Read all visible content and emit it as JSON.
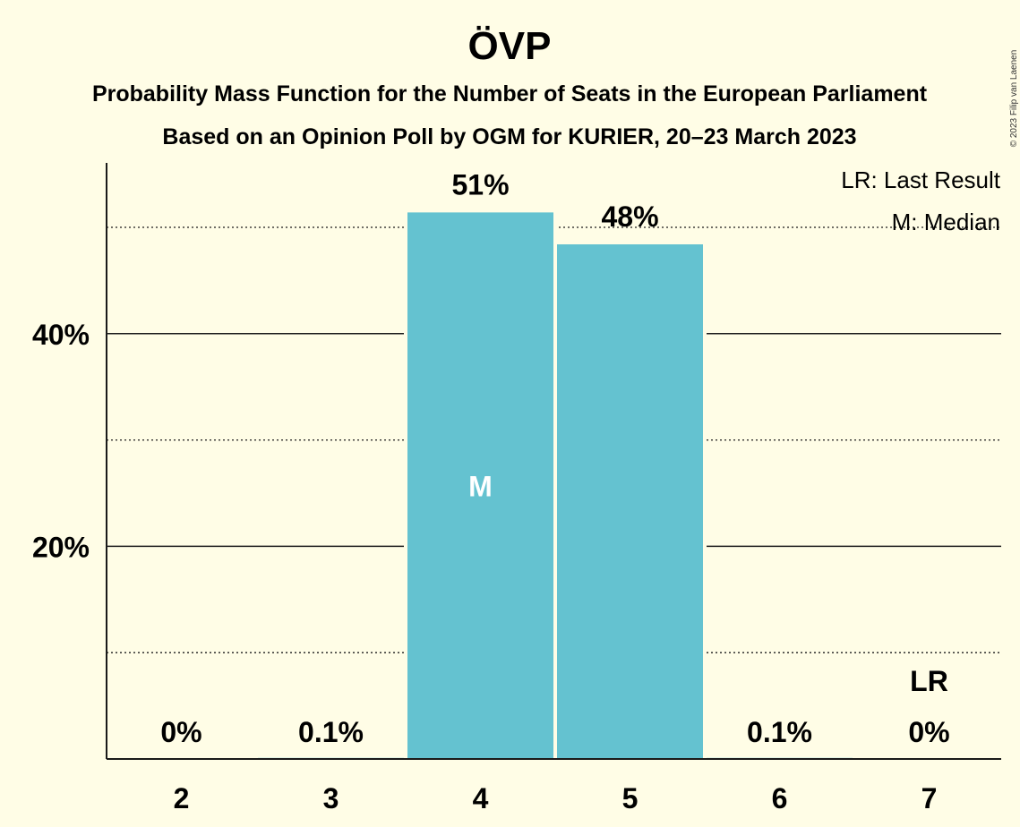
{
  "chart_data": {
    "type": "bar",
    "title": "ÖVP",
    "subtitle_1": "Probability Mass Function for the Number of Seats in the European Parliament",
    "subtitle_2": "Based on an Opinion Poll by OGM for KURIER, 20–23 March 2023",
    "categories": [
      "2",
      "3",
      "4",
      "5",
      "6",
      "7"
    ],
    "values": [
      0,
      0.1,
      51.4,
      48.4,
      0.1,
      0
    ],
    "value_labels": [
      "0%",
      "0.1%",
      "51%",
      "48%",
      "0.1%",
      "0%"
    ],
    "ylim": [
      0,
      56
    ],
    "y_ticks": [
      {
        "value": 20,
        "label": "20%"
      },
      {
        "value": 40,
        "label": "40%"
      }
    ],
    "y_minor_gridlines": [
      10,
      30,
      50
    ],
    "median_category": "4",
    "median_label": "M",
    "last_result_category": "7",
    "last_result_label": "LR",
    "legend": [
      "LR: Last Result",
      "M: Median"
    ],
    "legend_position": "top-right",
    "bar_color": "#64c2d0",
    "background_color": "#fffde6",
    "copyright": "© 2023 Filip van Laenen"
  }
}
